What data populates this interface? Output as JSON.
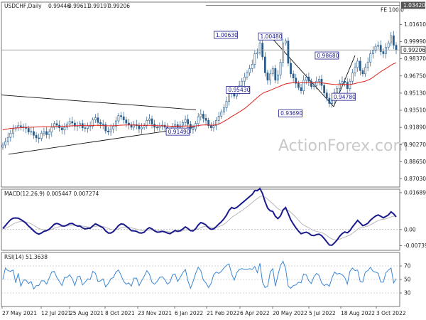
{
  "chart_data": {
    "type": "candlestick",
    "symbol_header": {
      "symbol": "USDCHF,Daily",
      "ohlc": [
        "0.99446",
        "0.99611",
        "0.99197",
        "0.99206"
      ]
    },
    "watermark": "ActionForex.com",
    "x_ticks": [
      "27 May 2021",
      "12 Jul 2021",
      "25 Aug 2021",
      "8 Oct 2021",
      "23 Nov 2021",
      "6 Jan 2022",
      "21 Feb 2022",
      "6 Apr 2022",
      "20 May 2022",
      "5 Jul 2022",
      "18 Aug 2022",
      "3 Oct 2022"
    ],
    "price_pane": {
      "ylim": [
        0.8626,
        1.0372
      ],
      "y_ticks": [
        "1.01610",
        "0.99990",
        "0.98370",
        "0.96750",
        "0.95130",
        "0.93510",
        "0.91890",
        "0.90270",
        "0.88650",
        "0.87030"
      ],
      "last_price": "0.99206",
      "top_level": "1.03420",
      "fib_label": "FE 100.0",
      "key_levels": [
        {
          "label": "1.00630",
          "value": 1.0063,
          "t": 0.6
        },
        {
          "label": "1.00480",
          "value": 1.0048,
          "t": 0.657
        },
        {
          "label": "0.95430",
          "value": 0.9543,
          "t": 0.608
        },
        {
          "label": "0.98680",
          "value": 0.9868,
          "t": 0.85
        },
        {
          "label": "0.93690",
          "value": 0.9369,
          "t": 0.77
        },
        {
          "label": "0.94780",
          "value": 0.9478,
          "t": 0.84
        },
        {
          "label": "0.91490",
          "value": 0.9149,
          "t": 0.455
        }
      ],
      "close": [
        0.9022,
        0.9055,
        0.9095,
        0.9135,
        0.9175,
        0.9185,
        0.9205,
        0.9195,
        0.919,
        0.918,
        0.9145,
        0.915,
        0.9115,
        0.909,
        0.9085,
        0.9135,
        0.915,
        0.912,
        0.9145,
        0.919,
        0.9225,
        0.921,
        0.9185,
        0.9165,
        0.919,
        0.922,
        0.9245,
        0.923,
        0.92,
        0.9205,
        0.9225,
        0.9185,
        0.918,
        0.9205,
        0.92,
        0.926,
        0.928,
        0.9235,
        0.922,
        0.9215,
        0.9155,
        0.9145,
        0.9175,
        0.92,
        0.925,
        0.93,
        0.929,
        0.926,
        0.923,
        0.9215,
        0.919,
        0.9215,
        0.9205,
        0.9175,
        0.919,
        0.9205,
        0.9255,
        0.927,
        0.922,
        0.919,
        0.9185,
        0.92,
        0.921,
        0.919,
        0.917,
        0.9165,
        0.9195,
        0.9215,
        0.919,
        0.921,
        0.9235,
        0.9265,
        0.922,
        0.9175,
        0.9175,
        0.9225,
        0.929,
        0.9315,
        0.9275,
        0.9255,
        0.9205,
        0.9185,
        0.9205,
        0.9255,
        0.9295,
        0.9335,
        0.9375,
        0.9435,
        0.9515,
        0.9535,
        0.9485,
        0.9535,
        0.9585,
        0.9625,
        0.9665,
        0.9705,
        0.9745,
        0.9785,
        0.9885,
        0.9895,
        0.9985,
        0.9855,
        0.9705,
        0.9635,
        0.9695,
        0.9745,
        0.9635,
        0.9685,
        0.9805,
        0.9985,
        1.0005,
        0.9795,
        0.9695,
        0.9655,
        0.9605,
        0.9565,
        0.9535,
        0.9635,
        0.9665,
        0.9625,
        0.9575,
        0.9585,
        0.9625,
        0.9645,
        0.9585,
        0.9515,
        0.9465,
        0.9415,
        0.9445,
        0.9515,
        0.9555,
        0.9605,
        0.9625,
        0.9615,
        0.9555,
        0.9625,
        0.9705,
        0.9755,
        0.9815,
        0.9725,
        0.9695,
        0.9755,
        0.9805,
        0.9885,
        0.9915,
        0.9955,
        0.9965,
        0.9905,
        0.9885,
        0.9945,
        0.9985,
        1.0055,
        0.9965,
        0.9921
      ],
      "sma": [
        0.9165,
        0.917,
        0.9175,
        0.918,
        0.9182,
        0.9184,
        0.9185,
        0.9186,
        0.9188,
        0.919,
        0.919,
        0.9191,
        0.9192,
        0.9193,
        0.9194,
        0.9195,
        0.9196,
        0.9195,
        0.9195,
        0.9196,
        0.9197,
        0.9198,
        0.9199,
        0.92,
        0.9201,
        0.9202,
        0.9203,
        0.9204,
        0.9205,
        0.9205,
        0.9206,
        0.9206,
        0.9205,
        0.9205,
        0.9206,
        0.9207,
        0.9208,
        0.9208,
        0.9207,
        0.9206,
        0.9205,
        0.9204,
        0.9204,
        0.9205,
        0.9206,
        0.9208,
        0.921,
        0.9211,
        0.9212,
        0.9212,
        0.9211,
        0.9211,
        0.921,
        0.9209,
        0.9208,
        0.9208,
        0.9208,
        0.9209,
        0.9208,
        0.9207,
        0.9205,
        0.9204,
        0.9204,
        0.9203,
        0.9202,
        0.9201,
        0.92,
        0.9201,
        0.92,
        0.92,
        0.9201,
        0.9203,
        0.9203,
        0.9202,
        0.9201,
        0.9203,
        0.9206,
        0.921,
        0.9212,
        0.9213,
        0.9212,
        0.921,
        0.921,
        0.9214,
        0.9222,
        0.9232,
        0.9246,
        0.926,
        0.9275,
        0.9292,
        0.9305,
        0.932,
        0.9335,
        0.935,
        0.9367,
        0.9387,
        0.9408,
        0.9428,
        0.945,
        0.947,
        0.9492,
        0.951,
        0.9522,
        0.953,
        0.954,
        0.955,
        0.956,
        0.957,
        0.958,
        0.959,
        0.96,
        0.9605,
        0.9608,
        0.961,
        0.9611,
        0.9611,
        0.961,
        0.9611,
        0.9612,
        0.9612,
        0.9611,
        0.961,
        0.961,
        0.961,
        0.9609,
        0.9607,
        0.9604,
        0.96,
        0.9597,
        0.9595,
        0.9594,
        0.9594,
        0.9595,
        0.9595,
        0.9594,
        0.9595,
        0.9598,
        0.9603,
        0.961,
        0.9616,
        0.962,
        0.9626,
        0.9635,
        0.9647,
        0.9662,
        0.968,
        0.9698,
        0.9715,
        0.973,
        0.9745,
        0.976,
        0.9778,
        0.979,
        0.98
      ]
    },
    "macd_pane": {
      "title": "MACD(12,26,9) 0.005447 0.007274",
      "ylim": [
        -0.0095,
        0.0185
      ],
      "y_ticks": [
        "0.016893",
        "0.00",
        "-0.007393"
      ],
      "macd": [
        0.0005,
        0.0018,
        0.0032,
        0.0045,
        0.0052,
        0.0053,
        0.0052,
        0.0046,
        0.0038,
        0.0029,
        0.0016,
        0.0006,
        -0.0006,
        -0.0016,
        -0.0021,
        -0.0016,
        -0.0008,
        -0.0005,
        0.0001,
        0.0012,
        0.0024,
        0.0028,
        0.0024,
        0.0017,
        0.0016,
        0.0021,
        0.0027,
        0.0028,
        0.0021,
        0.0016,
        0.0016,
        0.0008,
        0.0003,
        0.0006,
        0.0006,
        0.0017,
        0.0026,
        0.0021,
        0.0014,
        0.0008,
        -0.0006,
        -0.0016,
        -0.0016,
        -0.0009,
        0.0004,
        0.0018,
        0.0026,
        0.0024,
        0.0015,
        0.0006,
        -0.0005,
        -0.0006,
        -0.0008,
        -0.0015,
        -0.0016,
        -0.0012,
        0.0001,
        0.0009,
        0.0003,
        -0.0006,
        -0.0012,
        -0.0011,
        -0.0008,
        -0.0011,
        -0.0016,
        -0.0019,
        -0.0012,
        -0.0004,
        -0.0008,
        -0.0005,
        0.0003,
        0.0012,
        0.0005,
        -0.0005,
        -0.0006,
        0.0004,
        0.0021,
        0.0032,
        0.0028,
        0.0021,
        0.0008,
        0.0001,
        0.0003,
        0.0013,
        0.0025,
        0.0036,
        0.0049,
        0.0066,
        0.0088,
        0.0101,
        0.0096,
        0.0101,
        0.0111,
        0.0121,
        0.0131,
        0.0141,
        0.0151,
        0.0161,
        0.0178,
        0.0178,
        0.0188,
        0.0165,
        0.0128,
        0.0098,
        0.0086,
        0.0083,
        0.0061,
        0.005,
        0.0063,
        0.009,
        0.0101,
        0.0073,
        0.0045,
        0.0025,
        0.0008,
        -0.0007,
        -0.0019,
        -0.0015,
        -0.0012,
        -0.0017,
        -0.0026,
        -0.0028,
        -0.0023,
        -0.0021,
        -0.0028,
        -0.0041,
        -0.0056,
        -0.0071,
        -0.0072,
        -0.0061,
        -0.0048,
        -0.0031,
        -0.0018,
        -0.0011,
        -0.0015,
        -0.0005,
        0.0012,
        0.0027,
        0.0042,
        0.003,
        0.0018,
        0.0022,
        0.0029,
        0.0043,
        0.0053,
        0.0062,
        0.0067,
        0.0061,
        0.0054,
        0.006,
        0.0067,
        0.0081,
        0.0072,
        0.0058
      ],
      "signal": [
        0.0002,
        0.0006,
        0.0011,
        0.0018,
        0.0025,
        0.0031,
        0.0035,
        0.0037,
        0.0037,
        0.0035,
        0.0031,
        0.0026,
        0.0019,
        0.0012,
        0.0005,
        0.0001,
        -0.0001,
        -0.0002,
        -0.0001,
        0.0001,
        0.0006,
        0.001,
        0.0013,
        0.0014,
        0.0014,
        0.0016,
        0.0018,
        0.002,
        0.002,
        0.0019,
        0.0019,
        0.0016,
        0.0014,
        0.0012,
        0.0011,
        0.0012,
        0.0015,
        0.0016,
        0.0016,
        0.0014,
        0.001,
        0.0005,
        0.0001,
        -0.0001,
        -0.0,
        0.0003,
        0.0008,
        0.0011,
        0.0012,
        0.0011,
        0.0008,
        0.0005,
        0.0002,
        -0.0001,
        -0.0004,
        -0.0006,
        -0.0004,
        -0.0002,
        -0.0001,
        -0.0002,
        -0.0004,
        -0.0006,
        -0.0006,
        -0.0007,
        -0.0009,
        -0.0011,
        -0.0012,
        -0.001,
        -0.001,
        -0.0009,
        -0.0006,
        -0.0002,
        -0.0001,
        -0.0002,
        -0.0003,
        -0.0001,
        0.0003,
        0.0009,
        0.0013,
        0.0014,
        0.0013,
        0.001,
        0.0009,
        0.001,
        0.0013,
        0.0018,
        0.0024,
        0.0033,
        0.0044,
        0.0055,
        0.0064,
        0.0071,
        0.0079,
        0.0087,
        0.0096,
        0.0104,
        0.0114,
        0.0123,
        0.0134,
        0.0142,
        0.0151,
        0.0154,
        0.0149,
        0.0139,
        0.0128,
        0.0119,
        0.0107,
        0.0096,
        0.0089,
        0.0089,
        0.0092,
        0.0088,
        0.0079,
        0.0068,
        0.0056,
        0.0043,
        0.003,
        0.0021,
        0.0014,
        0.0008,
        0.0001,
        -0.0005,
        -0.0008,
        -0.0011,
        -0.0014,
        -0.0019,
        -0.0027,
        -0.0036,
        -0.0043,
        -0.0047,
        -0.0047,
        -0.0044,
        -0.0039,
        -0.0034,
        -0.003,
        -0.0025,
        -0.0017,
        -0.0008,
        0.0002,
        0.0008,
        0.001,
        0.0013,
        0.0016,
        0.0022,
        0.0028,
        0.0035,
        0.0041,
        0.0045,
        0.0047,
        0.0049,
        0.0053,
        0.0058,
        0.0061,
        0.0061
      ]
    },
    "rsi_pane": {
      "title": "RSI(14) 51.3638",
      "ylim": [
        10,
        90
      ],
      "y_ticks": [
        "70",
        "50",
        "30"
      ],
      "rsi": [
        50.0,
        67.0,
        63.0,
        62.0,
        64.0,
        45.0,
        59.0,
        40.0,
        49.0,
        49.0,
        44.0,
        47.0,
        36.0,
        41.0,
        41.0,
        48.0,
        48.0,
        43.0,
        52.0,
        61.0,
        62.0,
        53.0,
        47.0,
        41.0,
        53.0,
        53.0,
        57.0,
        51.0,
        41.0,
        54.0,
        55.0,
        42.0,
        46.0,
        51.0,
        50.0,
        62.0,
        59.0,
        47.0,
        48.0,
        51.0,
        39.0,
        44.0,
        51.0,
        53.0,
        61.0,
        64.0,
        56.0,
        47.0,
        43.0,
        45.0,
        40.0,
        52.0,
        52.0,
        41.0,
        48.0,
        55.0,
        63.0,
        58.0,
        46.0,
        43.0,
        47.0,
        53.0,
        54.0,
        50.0,
        43.0,
        46.0,
        57.0,
        58.0,
        47.0,
        53.0,
        60.0,
        65.0,
        48.0,
        37.0,
        47.0,
        59.0,
        68.0,
        63.0,
        49.0,
        45.0,
        38.0,
        44.0,
        57.0,
        61.0,
        59.0,
        62.0,
        67.0,
        71.0,
        73.0,
        58.0,
        49.0,
        60.0,
        65.0,
        66.0,
        65.0,
        65.0,
        66.0,
        65.0,
        69.0,
        60.0,
        74.0,
        46.0,
        38.0,
        40.0,
        61.0,
        66.0,
        40.0,
        56.0,
        71.0,
        77.0,
        66.0,
        40.0,
        37.0,
        41.0,
        42.0,
        46.0,
        45.0,
        58.0,
        57.0,
        48.0,
        44.0,
        54.0,
        59.0,
        56.0,
        45.0,
        41.0,
        43.0,
        40.0,
        52.0,
        61.0,
        58.0,
        59.0,
        57.0,
        53.0,
        43.0,
        62.0,
        67.0,
        63.0,
        64.0,
        47.0,
        46.0,
        61.0,
        63.0,
        68.0,
        62.0,
        61.0,
        59.0,
        46.0,
        46.0,
        60.0,
        64.0,
        67.0,
        45.0,
        51.36
      ]
    }
  }
}
